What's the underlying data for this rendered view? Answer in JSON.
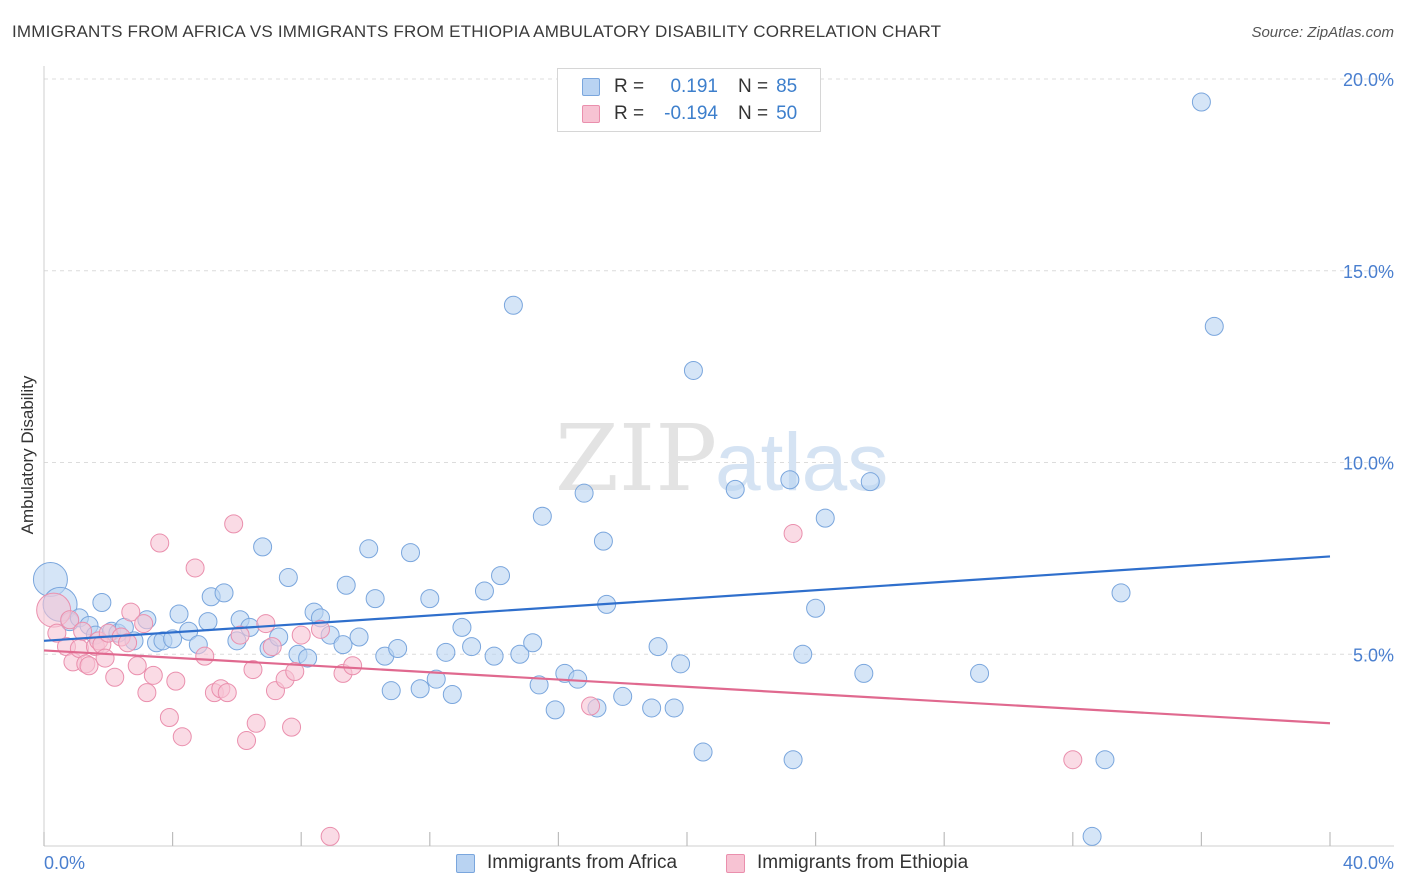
{
  "header": {
    "title": "IMMIGRANTS FROM AFRICA VS IMMIGRANTS FROM ETHIOPIA AMBULATORY DISABILITY CORRELATION CHART",
    "source": "Source: ZipAtlas.com"
  },
  "legend": {
    "rows": [
      {
        "r_label": "R =",
        "r_value": "0.191",
        "n_label": "N =",
        "n_value": "85"
      },
      {
        "r_label": "R =",
        "r_value": "-0.194",
        "n_label": "N =",
        "n_value": "50"
      }
    ]
  },
  "watermark": {
    "zip": "ZIP",
    "atlas": "atlas"
  },
  "colors": {
    "africa_fill": "#b9d3f2",
    "africa_stroke": "#7aa6dd",
    "africa_line": "#2f6fcc",
    "ethiopia_fill": "#f7c3d3",
    "ethiopia_stroke": "#ea8fad",
    "ethiopia_line": "#e0698f",
    "tick_label": "#4a7fcf"
  },
  "chart_data": {
    "type": "scatter",
    "title": "IMMIGRANTS FROM AFRICA VS IMMIGRANTS FROM ETHIOPIA AMBULATORY DISABILITY CORRELATION CHART",
    "xlabel": "",
    "ylabel": "Ambulatory Disability",
    "xlim": [
      0,
      40
    ],
    "ylim": [
      0,
      20
    ],
    "x_tick_labels": [
      "0.0%",
      "40.0%"
    ],
    "y_ticks": [
      5,
      10,
      15,
      20
    ],
    "y_tick_labels": [
      "5.0%",
      "10.0%",
      "15.0%",
      "20.0%"
    ],
    "grid": true,
    "series": [
      {
        "name": "Immigrants from Africa",
        "r": 0.191,
        "n": 85,
        "trend": {
          "x": [
            0,
            40
          ],
          "y": [
            5.35,
            7.55
          ]
        },
        "points": [
          {
            "x": 0.2,
            "y": 6.95,
            "big": true
          },
          {
            "x": 0.5,
            "y": 6.3,
            "big": true
          },
          {
            "x": 0.8,
            "y": 5.85
          },
          {
            "x": 1.1,
            "y": 5.95
          },
          {
            "x": 1.4,
            "y": 5.75
          },
          {
            "x": 1.6,
            "y": 5.5
          },
          {
            "x": 1.8,
            "y": 6.35
          },
          {
            "x": 2.1,
            "y": 5.6
          },
          {
            "x": 2.3,
            "y": 5.55
          },
          {
            "x": 2.5,
            "y": 5.7
          },
          {
            "x": 2.8,
            "y": 5.35
          },
          {
            "x": 3.2,
            "y": 5.9
          },
          {
            "x": 3.5,
            "y": 5.3
          },
          {
            "x": 3.7,
            "y": 5.35
          },
          {
            "x": 4.0,
            "y": 5.4
          },
          {
            "x": 4.2,
            "y": 6.05
          },
          {
            "x": 4.5,
            "y": 5.6
          },
          {
            "x": 4.8,
            "y": 5.25
          },
          {
            "x": 5.1,
            "y": 5.85
          },
          {
            "x": 5.2,
            "y": 6.5
          },
          {
            "x": 5.6,
            "y": 6.6
          },
          {
            "x": 6.0,
            "y": 5.35
          },
          {
            "x": 6.1,
            "y": 5.9
          },
          {
            "x": 6.4,
            "y": 5.7
          },
          {
            "x": 6.8,
            "y": 7.8
          },
          {
            "x": 7.0,
            "y": 5.15
          },
          {
            "x": 7.3,
            "y": 5.45
          },
          {
            "x": 7.6,
            "y": 7.0
          },
          {
            "x": 7.9,
            "y": 5.0
          },
          {
            "x": 8.2,
            "y": 4.9
          },
          {
            "x": 8.4,
            "y": 6.1
          },
          {
            "x": 8.6,
            "y": 5.95
          },
          {
            "x": 8.9,
            "y": 5.5
          },
          {
            "x": 9.3,
            "y": 5.25
          },
          {
            "x": 9.4,
            "y": 6.8
          },
          {
            "x": 9.8,
            "y": 5.45
          },
          {
            "x": 10.1,
            "y": 7.75
          },
          {
            "x": 10.3,
            "y": 6.45
          },
          {
            "x": 10.6,
            "y": 4.95
          },
          {
            "x": 10.8,
            "y": 4.05
          },
          {
            "x": 11.0,
            "y": 5.15
          },
          {
            "x": 11.4,
            "y": 7.65
          },
          {
            "x": 11.7,
            "y": 4.1
          },
          {
            "x": 12.0,
            "y": 6.45
          },
          {
            "x": 12.2,
            "y": 4.35
          },
          {
            "x": 12.5,
            "y": 5.05
          },
          {
            "x": 12.7,
            "y": 3.95
          },
          {
            "x": 13.0,
            "y": 5.7
          },
          {
            "x": 13.3,
            "y": 5.2
          },
          {
            "x": 13.7,
            "y": 6.65
          },
          {
            "x": 14.0,
            "y": 4.95
          },
          {
            "x": 14.2,
            "y": 7.05
          },
          {
            "x": 14.6,
            "y": 14.1
          },
          {
            "x": 14.8,
            "y": 5.0
          },
          {
            "x": 15.2,
            "y": 5.3
          },
          {
            "x": 15.4,
            "y": 4.2
          },
          {
            "x": 15.5,
            "y": 8.6
          },
          {
            "x": 15.9,
            "y": 3.55
          },
          {
            "x": 16.2,
            "y": 4.5
          },
          {
            "x": 16.6,
            "y": 4.35
          },
          {
            "x": 16.8,
            "y": 9.2
          },
          {
            "x": 17.2,
            "y": 3.6
          },
          {
            "x": 17.4,
            "y": 7.95
          },
          {
            "x": 17.5,
            "y": 6.3
          },
          {
            "x": 18.0,
            "y": 3.9
          },
          {
            "x": 18.9,
            "y": 3.6
          },
          {
            "x": 19.1,
            "y": 5.2
          },
          {
            "x": 19.6,
            "y": 3.6
          },
          {
            "x": 19.8,
            "y": 4.75
          },
          {
            "x": 20.2,
            "y": 12.4
          },
          {
            "x": 20.5,
            "y": 2.45
          },
          {
            "x": 21.5,
            "y": 9.3
          },
          {
            "x": 23.2,
            "y": 9.55
          },
          {
            "x": 23.3,
            "y": 2.25
          },
          {
            "x": 23.6,
            "y": 5.0
          },
          {
            "x": 24.0,
            "y": 6.2
          },
          {
            "x": 24.3,
            "y": 8.55
          },
          {
            "x": 25.5,
            "y": 4.5
          },
          {
            "x": 25.7,
            "y": 9.5
          },
          {
            "x": 29.1,
            "y": 4.5
          },
          {
            "x": 32.6,
            "y": 0.25
          },
          {
            "x": 33.0,
            "y": 2.25
          },
          {
            "x": 33.5,
            "y": 6.6
          },
          {
            "x": 36.0,
            "y": 19.4
          },
          {
            "x": 36.4,
            "y": 13.55
          }
        ]
      },
      {
        "name": "Immigrants from Ethiopia",
        "r": -0.194,
        "n": 50,
        "trend": {
          "x": [
            0,
            40
          ],
          "y": [
            5.1,
            3.2
          ]
        },
        "points": [
          {
            "x": 0.3,
            "y": 6.15,
            "big": true
          },
          {
            "x": 0.4,
            "y": 5.55
          },
          {
            "x": 0.7,
            "y": 5.2
          },
          {
            "x": 0.8,
            "y": 5.9
          },
          {
            "x": 0.9,
            "y": 4.8
          },
          {
            "x": 1.1,
            "y": 5.15
          },
          {
            "x": 1.2,
            "y": 5.6
          },
          {
            "x": 1.3,
            "y": 4.75
          },
          {
            "x": 1.4,
            "y": 4.7
          },
          {
            "x": 1.6,
            "y": 5.2
          },
          {
            "x": 1.7,
            "y": 5.35
          },
          {
            "x": 1.8,
            "y": 5.25
          },
          {
            "x": 1.9,
            "y": 4.9
          },
          {
            "x": 2.0,
            "y": 5.55
          },
          {
            "x": 2.2,
            "y": 4.4
          },
          {
            "x": 2.4,
            "y": 5.45
          },
          {
            "x": 2.6,
            "y": 5.3
          },
          {
            "x": 2.7,
            "y": 6.1
          },
          {
            "x": 2.9,
            "y": 4.7
          },
          {
            "x": 3.1,
            "y": 5.8
          },
          {
            "x": 3.2,
            "y": 4.0
          },
          {
            "x": 3.4,
            "y": 4.45
          },
          {
            "x": 3.6,
            "y": 7.9
          },
          {
            "x": 3.9,
            "y": 3.35
          },
          {
            "x": 4.1,
            "y": 4.3
          },
          {
            "x": 4.3,
            "y": 2.85
          },
          {
            "x": 4.7,
            "y": 7.25
          },
          {
            "x": 5.0,
            "y": 4.95
          },
          {
            "x": 5.3,
            "y": 4.0
          },
          {
            "x": 5.5,
            "y": 4.1
          },
          {
            "x": 5.7,
            "y": 4.0
          },
          {
            "x": 5.9,
            "y": 8.4
          },
          {
            "x": 6.1,
            "y": 5.5
          },
          {
            "x": 6.3,
            "y": 2.75
          },
          {
            "x": 6.5,
            "y": 4.6
          },
          {
            "x": 6.6,
            "y": 3.2
          },
          {
            "x": 6.9,
            "y": 5.8
          },
          {
            "x": 7.1,
            "y": 5.2
          },
          {
            "x": 7.2,
            "y": 4.05
          },
          {
            "x": 7.5,
            "y": 4.35
          },
          {
            "x": 7.7,
            "y": 3.1
          },
          {
            "x": 7.8,
            "y": 4.55
          },
          {
            "x": 8.0,
            "y": 5.5
          },
          {
            "x": 8.6,
            "y": 5.65
          },
          {
            "x": 8.9,
            "y": 0.25
          },
          {
            "x": 9.3,
            "y": 4.5
          },
          {
            "x": 9.6,
            "y": 4.7
          },
          {
            "x": 17.0,
            "y": 3.65
          },
          {
            "x": 23.3,
            "y": 8.15
          },
          {
            "x": 32.0,
            "y": 2.25
          }
        ]
      }
    ]
  },
  "bottom_legend": {
    "items": [
      "Immigrants from Africa",
      "Immigrants from Ethiopia"
    ]
  }
}
